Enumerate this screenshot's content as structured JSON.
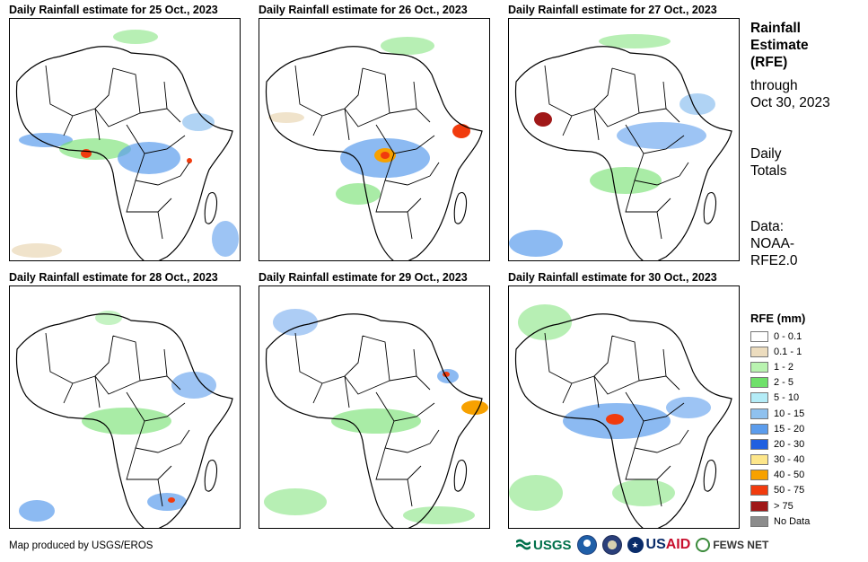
{
  "panels": [
    {
      "title": "Daily Rainfall estimate for 25 Oct., 2023"
    },
    {
      "title": "Daily Rainfall estimate for 26 Oct., 2023"
    },
    {
      "title": "Daily Rainfall estimate for 27 Oct., 2023"
    },
    {
      "title": "Daily Rainfall estimate for 28 Oct., 2023"
    },
    {
      "title": "Daily Rainfall estimate for 29 Oct., 2023"
    },
    {
      "title": "Daily Rainfall estimate for 30 Oct., 2023"
    }
  ],
  "side": {
    "title_line1": "Rainfall",
    "title_line2": "Estimate",
    "title_line3": "(RFE)",
    "through": "through",
    "date": "Oct 30, 2023",
    "daily": "Daily",
    "totals": "Totals",
    "data_label": "Data:",
    "source1": "NOAA-",
    "source2": "RFE2.0"
  },
  "legend": {
    "title": "RFE (mm)",
    "items": [
      {
        "label": "0 - 0.1",
        "color": "#ffffff"
      },
      {
        "label": "0.1 - 1",
        "color": "#ecdcbe"
      },
      {
        "label": "1 - 2",
        "color": "#b9f3b0"
      },
      {
        "label": "2 - 5",
        "color": "#6fe06a"
      },
      {
        "label": "5 - 10",
        "color": "#b4ecf7"
      },
      {
        "label": "10 - 15",
        "color": "#8fc1ef"
      },
      {
        "label": "15 - 20",
        "color": "#5b9cec"
      },
      {
        "label": "20 - 30",
        "color": "#1f5fe0"
      },
      {
        "label": "30 - 40",
        "color": "#fde68a"
      },
      {
        "label": "40 - 50",
        "color": "#f7a100"
      },
      {
        "label": "50 - 75",
        "color": "#f13b0d"
      },
      {
        "label": "> 75",
        "color": "#a01818"
      },
      {
        "label": "No Data",
        "color": "#8c8c8c"
      }
    ]
  },
  "credit": "Map produced by USGS/EROS",
  "logos": {
    "usgs": "USGS",
    "usaid_us": "US",
    "usaid_aid": "AID",
    "fews": "FEWS NET"
  }
}
